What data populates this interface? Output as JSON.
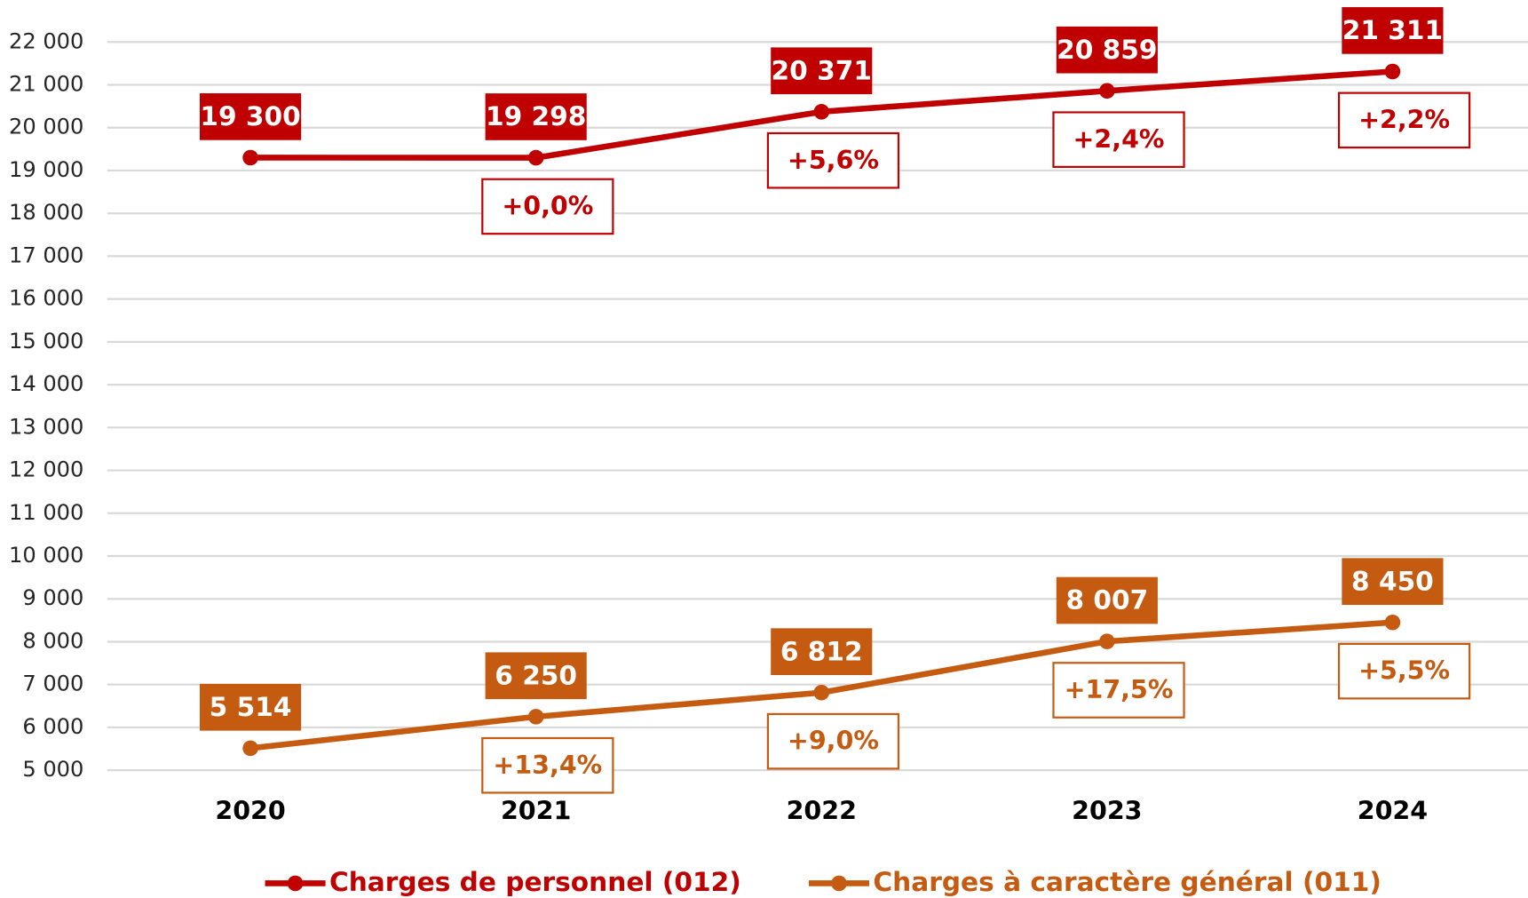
{
  "chart_data": {
    "type": "line",
    "categories": [
      "2020",
      "2021",
      "2022",
      "2023",
      "2024"
    ],
    "series": [
      {
        "name": "Charges de personnel (012)",
        "color": "#c00000",
        "values": [
          19300,
          19298,
          20371,
          20859,
          21311
        ],
        "value_labels": [
          "19 300",
          "19 298",
          "20 371",
          "20 859",
          "21 311"
        ],
        "changes": [
          null,
          "+0,0%",
          "+5,6%",
          "+2,4%",
          "+2,2%"
        ]
      },
      {
        "name": "Charges à caractère général (011)",
        "color": "#c55a11",
        "values": [
          5514,
          6250,
          6812,
          8007,
          8450
        ],
        "value_labels": [
          "5 514",
          "6 250",
          "6 812",
          "8 007",
          "8 450"
        ],
        "changes": [
          null,
          "+13,4%",
          "+9,0%",
          "+17,5%",
          "+5,5%"
        ]
      }
    ],
    "ylim": [
      5000,
      22000
    ],
    "yticks": [
      {
        "value": 5000,
        "label": "5 000"
      },
      {
        "value": 6000,
        "label": "6 000"
      },
      {
        "value": 7000,
        "label": "7 000"
      },
      {
        "value": 8000,
        "label": "8 000"
      },
      {
        "value": 9000,
        "label": "9 000"
      },
      {
        "value": 10000,
        "label": "10 000"
      },
      {
        "value": 11000,
        "label": "11 000"
      },
      {
        "value": 12000,
        "label": "12 000"
      },
      {
        "value": 13000,
        "label": "13 000"
      },
      {
        "value": 14000,
        "label": "14 000"
      },
      {
        "value": 15000,
        "label": "15 000"
      },
      {
        "value": 16000,
        "label": "16 000"
      },
      {
        "value": 17000,
        "label": "17 000"
      },
      {
        "value": 18000,
        "label": "18 000"
      },
      {
        "value": 19000,
        "label": "19 000"
      },
      {
        "value": 20000,
        "label": "20 000"
      },
      {
        "value": 21000,
        "label": "21 000"
      },
      {
        "value": 22000,
        "label": "22 000"
      }
    ],
    "grid": true,
    "legend": "bottom"
  }
}
